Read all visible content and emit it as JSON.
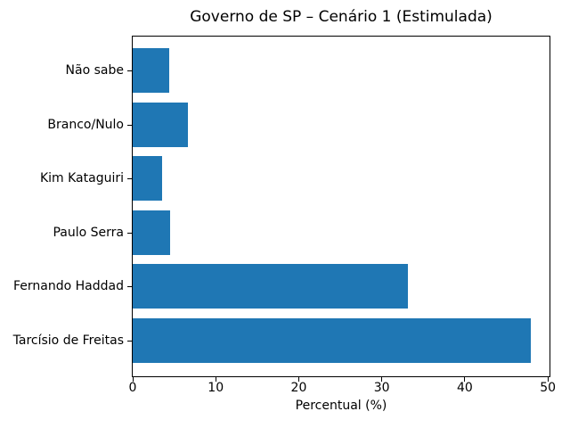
{
  "chart_data": {
    "type": "bar",
    "orientation": "horizontal",
    "title": "Governo de SP – Cenário 1 (Estimulada)",
    "categories": [
      "Não sabe",
      "Branco/Nulo",
      "Kim Kataguiri",
      "Paulo Serra",
      "Fernando Haddad",
      "Tarcísio de Freitas"
    ],
    "values": [
      4.4,
      6.7,
      3.5,
      4.5,
      33.1,
      47.9
    ],
    "xlabel": "Percentual (%)",
    "xlim": [
      0,
      50.2
    ],
    "xticks": [
      0,
      10,
      20,
      30,
      40,
      50
    ],
    "bar_color": "#1f77b4",
    "grid": false,
    "legend_position": "none"
  }
}
